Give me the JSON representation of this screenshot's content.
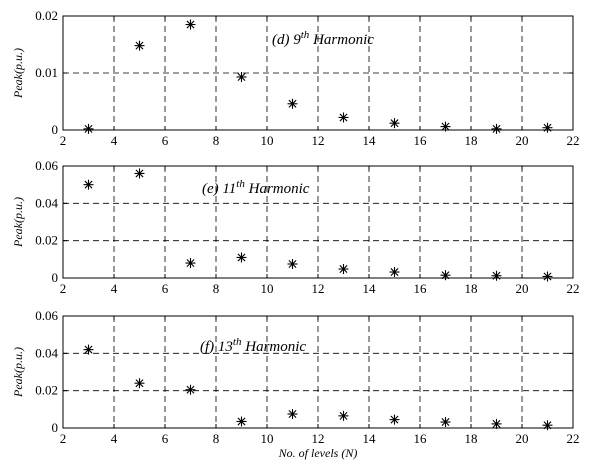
{
  "chart_data": [
    {
      "type": "scatter",
      "marker": "asterisk",
      "annotation": {
        "prefix": "(d) 9",
        "sup": "th",
        "suffix": " Harmonic"
      },
      "ylabel": "Peak(p.u.)",
      "xlabel": "",
      "xlim": [
        2,
        22
      ],
      "ylim": [
        0,
        0.02
      ],
      "xticks": [
        2,
        4,
        6,
        8,
        10,
        12,
        14,
        16,
        18,
        20,
        22
      ],
      "yticks": [
        0,
        0.01,
        0.02
      ],
      "ytick_labels": [
        "0",
        "0.01",
        "0.02"
      ],
      "grid": true,
      "points": [
        {
          "x": 3,
          "y": 0.0002
        },
        {
          "x": 5,
          "y": 0.0148
        },
        {
          "x": 7,
          "y": 0.0185
        },
        {
          "x": 9,
          "y": 0.0093
        },
        {
          "x": 11,
          "y": 0.0046
        },
        {
          "x": 13,
          "y": 0.0022
        },
        {
          "x": 15,
          "y": 0.0012
        },
        {
          "x": 17,
          "y": 0.0006
        },
        {
          "x": 19,
          "y": 0.0002
        },
        {
          "x": 21,
          "y": 0.0004
        }
      ]
    },
    {
      "type": "scatter",
      "marker": "asterisk",
      "annotation": {
        "prefix": "(e) 11",
        "sup": "th",
        "suffix": " Harmonic"
      },
      "ylabel": "Peak(p.u.)",
      "xlabel": "",
      "xlim": [
        2,
        22
      ],
      "ylim": [
        0,
        0.06
      ],
      "xticks": [
        2,
        4,
        6,
        8,
        10,
        12,
        14,
        16,
        18,
        20,
        22
      ],
      "yticks": [
        0,
        0.02,
        0.04,
        0.06
      ],
      "ytick_labels": [
        "0",
        "0.02",
        "0.04",
        "0.06"
      ],
      "grid": true,
      "points": [
        {
          "x": 3,
          "y": 0.05
        },
        {
          "x": 5,
          "y": 0.056
        },
        {
          "x": 7,
          "y": 0.008
        },
        {
          "x": 9,
          "y": 0.011
        },
        {
          "x": 11,
          "y": 0.0075
        },
        {
          "x": 13,
          "y": 0.0048
        },
        {
          "x": 15,
          "y": 0.0032
        },
        {
          "x": 17,
          "y": 0.0015
        },
        {
          "x": 19,
          "y": 0.0012
        },
        {
          "x": 21,
          "y": 0.0008
        }
      ]
    },
    {
      "type": "scatter",
      "marker": "asterisk",
      "annotation": {
        "prefix": "(f) 13",
        "sup": "th",
        "suffix": " Harmonic"
      },
      "ylabel": "Peak(p.u.)",
      "xlabel": "No. of levels (N)",
      "xlim": [
        2,
        22
      ],
      "ylim": [
        0,
        0.06
      ],
      "xticks": [
        2,
        4,
        6,
        8,
        10,
        12,
        14,
        16,
        18,
        20,
        22
      ],
      "yticks": [
        0,
        0.02,
        0.04,
        0.06
      ],
      "ytick_labels": [
        "0",
        "0.02",
        "0.04",
        "0.06"
      ],
      "grid": true,
      "points": [
        {
          "x": 3,
          "y": 0.042
        },
        {
          "x": 5,
          "y": 0.024
        },
        {
          "x": 7,
          "y": 0.0205
        },
        {
          "x": 9,
          "y": 0.0035
        },
        {
          "x": 11,
          "y": 0.0075
        },
        {
          "x": 13,
          "y": 0.0065
        },
        {
          "x": 15,
          "y": 0.0045
        },
        {
          "x": 17,
          "y": 0.0032
        },
        {
          "x": 19,
          "y": 0.0022
        },
        {
          "x": 21,
          "y": 0.0015
        }
      ]
    }
  ]
}
